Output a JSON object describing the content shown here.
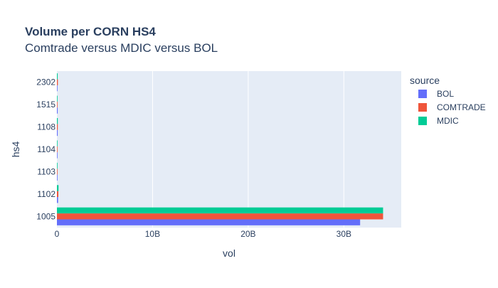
{
  "chart_data": {
    "type": "bar",
    "orientation": "horizontal",
    "title": "Volume per CORN HS4",
    "subtitle": "Comtrade versus MDIC versus BOL",
    "xlabel": "vol",
    "ylabel": "hs4",
    "categories": [
      "1005",
      "1102",
      "1103",
      "1104",
      "1108",
      "1515",
      "2302"
    ],
    "xlim": [
      0,
      36000000000
    ],
    "xticks": [
      {
        "value": 0,
        "label": "0"
      },
      {
        "value": 10000000000,
        "label": "10B"
      },
      {
        "value": 20000000000,
        "label": "20B"
      },
      {
        "value": 30000000000,
        "label": "30B"
      }
    ],
    "legend_title": "source",
    "legend_position": "right",
    "series": [
      {
        "name": "BOL",
        "color": "#636efa",
        "values": [
          31700000000,
          120000000,
          30000000,
          20000000,
          80000000,
          80000000,
          60000000
        ]
      },
      {
        "name": "COMTRADE",
        "color": "#ef553b",
        "values": [
          34100000000,
          150000000,
          20000000,
          10000000,
          90000000,
          30000000,
          100000000
        ]
      },
      {
        "name": "MDIC",
        "color": "#00cc96",
        "values": [
          34100000000,
          170000000,
          30000000,
          20000000,
          90000000,
          60000000,
          80000000
        ]
      }
    ]
  }
}
